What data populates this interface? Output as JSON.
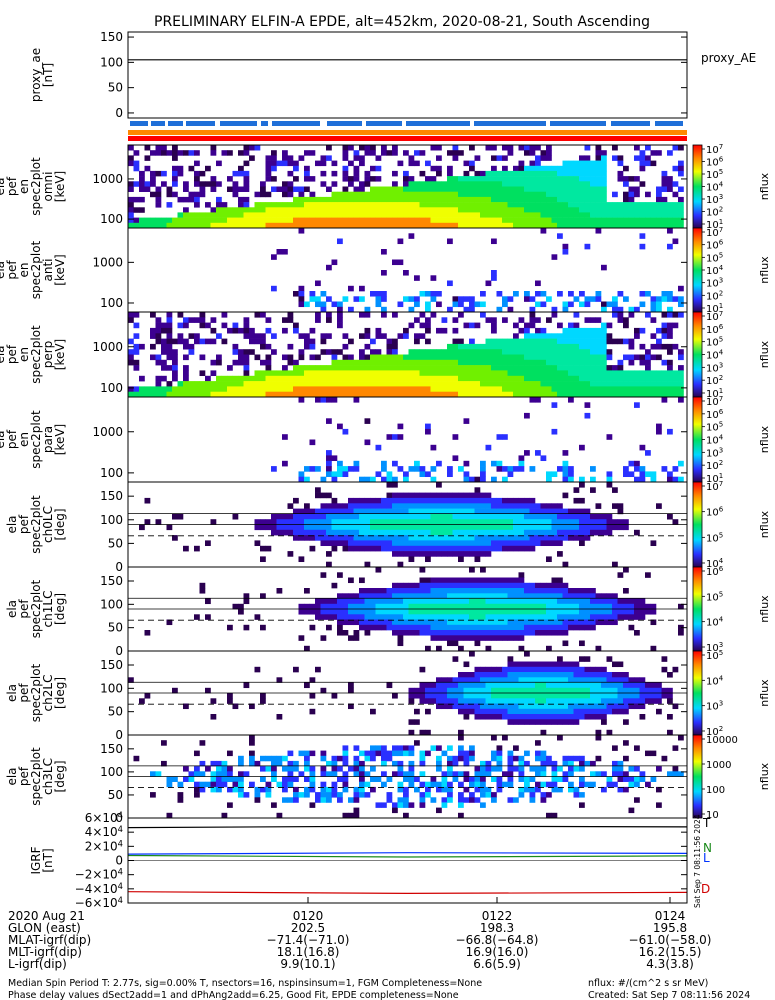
{
  "title": "PRELIMINARY ELFIN-A EPDE, alt=452km, 2020-08-21, South Ascending",
  "colors": {
    "flag_blue": "#1f6fd8",
    "flag_orange": "#ff8800",
    "flag_red": "#ff0000",
    "igrf_T": "#000000",
    "igrf_N": "#1a8a1a",
    "igrf_L": "#0033ff",
    "igrf_D": "#d00000"
  },
  "chart_data": [
    {
      "type": "line",
      "name": "proxy_ae",
      "ylabel_lines": [
        "proxy_ae",
        "[nT]"
      ],
      "legend": "proxy_AE",
      "yticks": [
        "150",
        "100",
        "50",
        "0"
      ],
      "ylim": [
        -10,
        160
      ],
      "series": [
        {
          "name": "proxy_AE",
          "x": [
            0,
            1
          ],
          "y": [
            105,
            105
          ]
        }
      ]
    },
    {
      "type": "heatmap",
      "name": "spec2plot-omni",
      "ylabel_lines": [
        "ela",
        "pef",
        "en",
        "spec2plot",
        "omni",
        "[keV]"
      ],
      "yscale": "log",
      "yticks": [
        "1000",
        "100"
      ],
      "ylim": [
        60,
        7000
      ],
      "colorbar": {
        "label": "nflux",
        "ticks": [
          "10^7",
          "10^6",
          "10^5",
          "10^4",
          "10^3",
          "10^2",
          "10^1"
        ]
      }
    },
    {
      "type": "heatmap",
      "name": "spec2plot-anti",
      "ylabel_lines": [
        "ela",
        "pef",
        "en",
        "spec2plot",
        "anti",
        "[keV]"
      ],
      "yscale": "log",
      "yticks": [
        "1000",
        "100"
      ],
      "ylim": [
        60,
        7000
      ],
      "colorbar": {
        "label": "nflux",
        "ticks": [
          "10^7",
          "10^6",
          "10^5",
          "10^4",
          "10^3",
          "10^2",
          "10^1"
        ]
      }
    },
    {
      "type": "heatmap",
      "name": "spec2plot-perp",
      "ylabel_lines": [
        "ela",
        "pef",
        "en",
        "spec2plot",
        "perp",
        "[keV]"
      ],
      "yscale": "log",
      "yticks": [
        "1000",
        "100"
      ],
      "ylim": [
        60,
        7000
      ],
      "colorbar": {
        "label": "nflux",
        "ticks": [
          "10^7",
          "10^6",
          "10^5",
          "10^4",
          "10^3",
          "10^2",
          "10^1"
        ]
      }
    },
    {
      "type": "heatmap",
      "name": "spec2plot-para",
      "ylabel_lines": [
        "ela",
        "pef",
        "en",
        "spec2plot",
        "para",
        "[keV]"
      ],
      "yscale": "log",
      "yticks": [
        "1000",
        "100"
      ],
      "ylim": [
        60,
        7000
      ],
      "colorbar": {
        "label": "nflux",
        "ticks": [
          "10^7",
          "10^6",
          "10^5",
          "10^4",
          "10^3",
          "10^2",
          "10^1"
        ]
      }
    },
    {
      "type": "heatmap",
      "name": "spec2plot-ch0LC",
      "ylabel_lines": [
        "ela",
        "pef",
        "spec2plot",
        "ch0LC",
        "[deg]"
      ],
      "yticks": [
        "150",
        "100",
        "50",
        "0"
      ],
      "ylim": [
        0,
        180
      ],
      "colorbar": {
        "label": "nflux",
        "ticks": [
          "10^7",
          "10^6",
          "10^5",
          "10^4"
        ]
      }
    },
    {
      "type": "heatmap",
      "name": "spec2plot-ch1LC",
      "ylabel_lines": [
        "ela",
        "pef",
        "spec2plot",
        "ch1LC",
        "[deg]"
      ],
      "yticks": [
        "150",
        "100",
        "50",
        "0"
      ],
      "ylim": [
        0,
        180
      ],
      "colorbar": {
        "label": "nflux",
        "ticks": [
          "10^6",
          "10^5",
          "10^4",
          "10^3"
        ]
      }
    },
    {
      "type": "heatmap",
      "name": "spec2plot-ch2LC",
      "ylabel_lines": [
        "ela",
        "pef",
        "spec2plot",
        "ch2LC",
        "[deg]"
      ],
      "yticks": [
        "150",
        "100",
        "50",
        "0"
      ],
      "ylim": [
        0,
        180
      ],
      "colorbar": {
        "label": "nflux",
        "ticks": [
          "10^5",
          "10^4",
          "10^3",
          "10^2"
        ]
      }
    },
    {
      "type": "heatmap",
      "name": "spec2plot-ch3LC",
      "ylabel_lines": [
        "ela",
        "pef",
        "spec2plot",
        "ch3LC",
        "[deg]"
      ],
      "yticks": [
        "150",
        "100",
        "50",
        "0"
      ],
      "ylim": [
        0,
        180
      ],
      "colorbar": {
        "label": "nflux",
        "ticks": [
          "10000",
          "1000",
          "100",
          "10"
        ]
      }
    },
    {
      "type": "line",
      "name": "IGRF",
      "ylabel_lines": [
        "IGRF",
        "[nT]"
      ],
      "yticks": [
        "6×10^4",
        "4×10^4",
        "2×10^4",
        "0",
        "−2×10^4",
        "−4×10^4",
        "−6×10^4"
      ],
      "ylim": [
        -60000,
        60000
      ],
      "legend": [
        "T",
        "N",
        "L",
        "D"
      ],
      "series": [
        {
          "name": "T",
          "x": [
            0,
            0.5,
            1
          ],
          "y": [
            46500,
            48500,
            47500
          ]
        },
        {
          "name": "N",
          "x": [
            0,
            0.5,
            1
          ],
          "y": [
            7000,
            5000,
            6500
          ]
        },
        {
          "name": "L",
          "x": [
            0,
            0.5,
            1
          ],
          "y": [
            9000,
            11000,
            10000
          ]
        },
        {
          "name": "D",
          "x": [
            0,
            0.5,
            1
          ],
          "y": [
            -44000,
            -46500,
            -45000
          ]
        }
      ]
    }
  ],
  "x_axis": {
    "rows": [
      {
        "label": "2020 Aug 21",
        "values": [
          "0120",
          "0122",
          "0124"
        ]
      },
      {
        "label": "GLON (east)",
        "values": [
          "202.5",
          "198.3",
          "195.8"
        ]
      },
      {
        "label": "MLAT-igrf(dip)",
        "values": [
          "−71.4(−71.0)",
          "−66.8(−64.8)",
          "−61.0(−58.0)"
        ]
      },
      {
        "label": "MLT-igrf(dip)",
        "values": [
          "18.1(16.8)",
          "16.9(16.0)",
          "16.2(15.5)"
        ]
      },
      {
        "label": "L-igrf(dip)",
        "values": [
          "9.9(10.1)",
          "6.6(5.9)",
          "4.3(3.8)"
        ]
      }
    ]
  },
  "footer": {
    "line1": "Median Spin Period T: 2.77s, sig=0.00% T, nsectors=16, nspinsinsum=1, FGM Completeness=None",
    "line2": "Phase delay values dSect2add=1 and dPhAng2add=6.25, Good Fit, EPDE completeness=None",
    "right1": "nflux: #/(cm^2 s sr MeV)",
    "right2": "Created: Sat Sep  7 08:11:56 2024",
    "vertical": "Sat Sep  7 08:11:56 2024"
  }
}
